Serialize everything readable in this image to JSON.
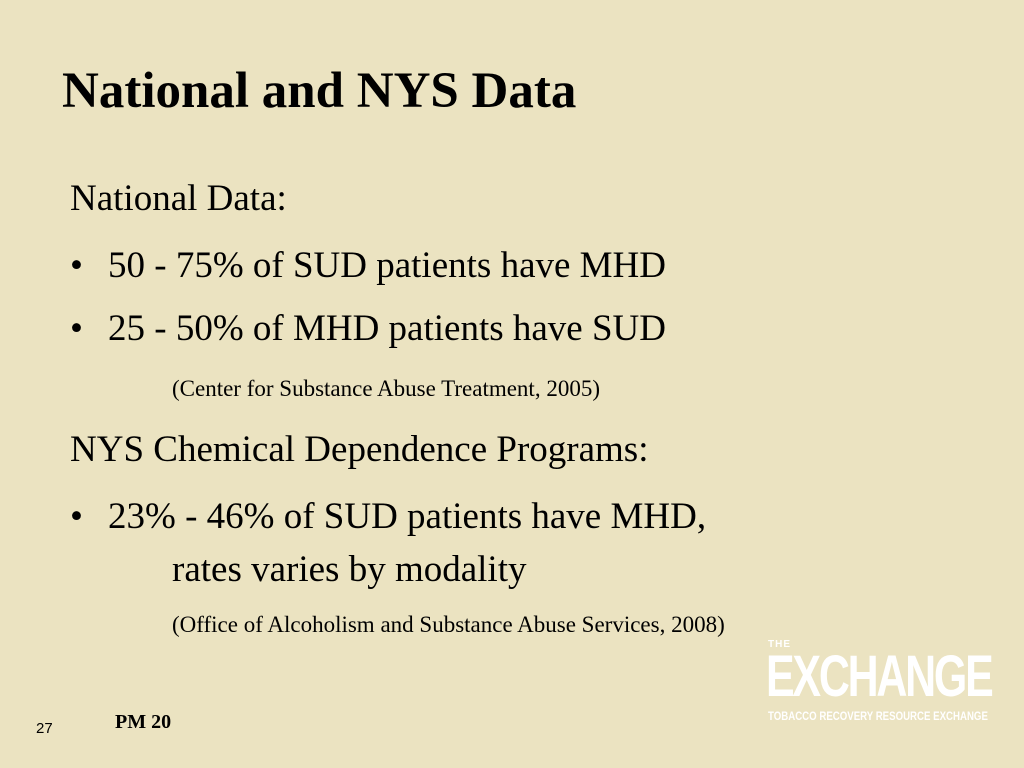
{
  "slide": {
    "title": "National and NYS Data",
    "sections": [
      {
        "heading": "National Data:",
        "bullets": [
          "50 - 75% of SUD patients have MHD",
          "25 - 50% of MHD patients have SUD"
        ],
        "citation": "(Center for Substance Abuse Treatment, 2005)"
      },
      {
        "heading": "NYS Chemical Dependence Programs:",
        "bullets": [
          "23% - 46% of SUD patients have MHD,"
        ],
        "continuation": "rates varies by modality",
        "citation": "(Office of Alcoholism and Substance Abuse Services, 2008)"
      }
    ],
    "bullet_glyph": "•",
    "slide_number": "27",
    "footer_label": "PM 20",
    "background_color": "#ebe3c1"
  },
  "logo": {
    "the": "THE",
    "word": "EXCHANGE",
    "tagline": "TOBACCO RECOVERY RESOURCE EXCHANGE",
    "color": "#ffffff"
  }
}
